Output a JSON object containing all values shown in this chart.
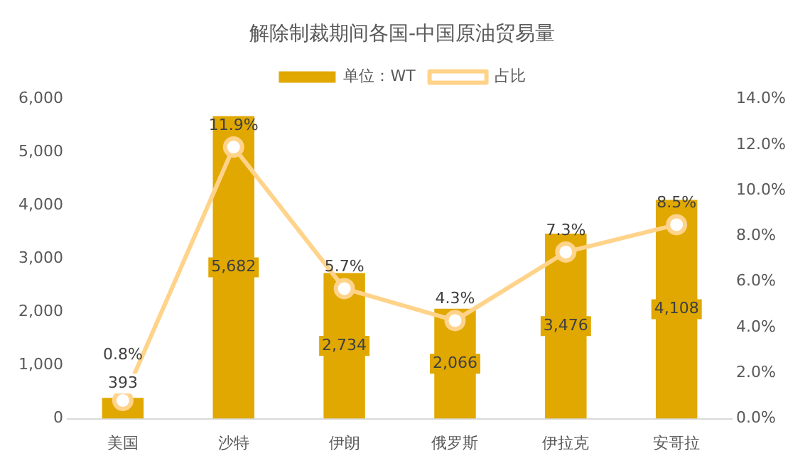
{
  "chart_data": {
    "type": "bar",
    "title": "解除制裁期间各国-中国原油贸易量",
    "categories": [
      "美国",
      "沙特",
      "伊朗",
      "俄罗斯",
      "伊拉克",
      "安哥拉"
    ],
    "series": [
      {
        "name": "单位：WT",
        "color": "#e0a800",
        "values": [
          393,
          5682,
          2734,
          2066,
          3476,
          4108
        ],
        "value_labels": [
          "393",
          "5,682",
          "2,734",
          "2,066",
          "3,476",
          "4,108"
        ]
      },
      {
        "name": "占比",
        "type": "line",
        "axis": "y2",
        "color": "#ffd38a",
        "marker": "circle",
        "values": [
          0.8,
          11.9,
          5.7,
          4.3,
          7.3,
          8.5
        ],
        "value_labels": [
          "0.8%",
          "11.9%",
          "5.7%",
          "4.3%",
          "7.3%",
          "8.5%"
        ]
      }
    ],
    "ylim": [
      0,
      6000
    ],
    "yticks": [
      {
        "value": 0,
        "label": "0"
      },
      {
        "value": 1000,
        "label": "1,000"
      },
      {
        "value": 2000,
        "label": "2,000"
      },
      {
        "value": 3000,
        "label": "3,000"
      },
      {
        "value": 4000,
        "label": "4,000"
      },
      {
        "value": 5000,
        "label": "5,000"
      },
      {
        "value": 6000,
        "label": "6,000"
      }
    ],
    "y2lim": [
      0,
      14
    ],
    "y2ticks": [
      {
        "value": 0,
        "label": "0.0%"
      },
      {
        "value": 2,
        "label": "2.0%"
      },
      {
        "value": 4,
        "label": "4.0%"
      },
      {
        "value": 6,
        "label": "6.0%"
      },
      {
        "value": 8,
        "label": "8.0%"
      },
      {
        "value": 10,
        "label": "10.0%"
      },
      {
        "value": 12,
        "label": "12.0%"
      },
      {
        "value": 14,
        "label": "14.0%"
      }
    ],
    "legend": "top",
    "grid": false
  }
}
